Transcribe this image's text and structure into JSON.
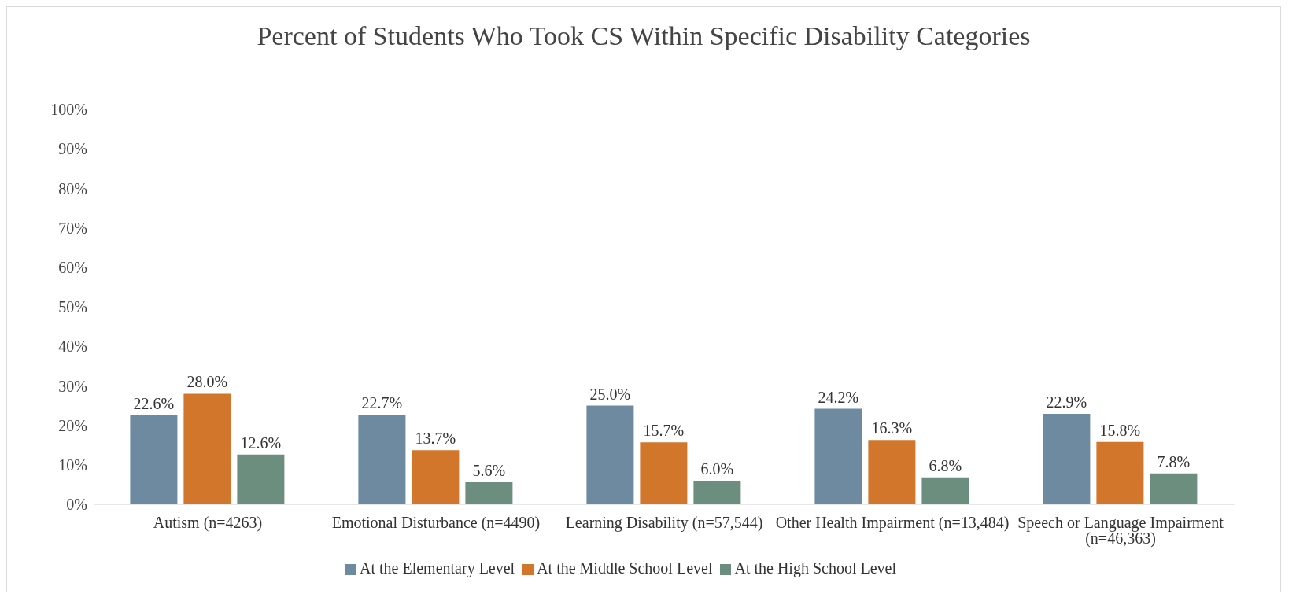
{
  "chart_data": {
    "type": "bar",
    "title": "Percent of Students Who Took CS Within Specific Disability Categories",
    "categories": [
      "Autism (n=4263)",
      "Emotional Disturbance (n=4490)",
      "Learning Disability (n=57,544)",
      "Other Health Impairment (n=13,484)",
      "Speech or Language Impairment (n=46,363)"
    ],
    "series": [
      {
        "name": "At the Elementary Level",
        "color": "#6d8aa1",
        "values": [
          22.6,
          22.7,
          25.0,
          24.2,
          22.9
        ],
        "value_labels": [
          "22.6%",
          "22.7%",
          "25.0%",
          "24.2%",
          "22.9%"
        ]
      },
      {
        "name": "At the Middle School Level",
        "color": "#d2762b",
        "values": [
          28.0,
          13.7,
          15.7,
          16.3,
          15.8
        ],
        "value_labels": [
          "28.0%",
          "13.7%",
          "15.7%",
          "16.3%",
          "15.8%"
        ]
      },
      {
        "name": "At the High School Level",
        "color": "#6b8e7e",
        "values": [
          12.6,
          5.6,
          6.0,
          6.8,
          7.8
        ],
        "value_labels": [
          "12.6%",
          "5.6%",
          "6.0%",
          "6.8%",
          "7.8%"
        ]
      }
    ],
    "ylim": [
      0,
      100
    ],
    "yticks": [
      {
        "value": 0,
        "label": "0%"
      },
      {
        "value": 10,
        "label": "10%"
      },
      {
        "value": 20,
        "label": "20%"
      },
      {
        "value": 30,
        "label": "30%"
      },
      {
        "value": 40,
        "label": "40%"
      },
      {
        "value": 50,
        "label": "50%"
      },
      {
        "value": 60,
        "label": "60%"
      },
      {
        "value": 70,
        "label": "70%"
      },
      {
        "value": 80,
        "label": "80%"
      },
      {
        "value": 90,
        "label": "90%"
      },
      {
        "value": 100,
        "label": "100%"
      }
    ],
    "grid": false,
    "legend": "bottom"
  }
}
